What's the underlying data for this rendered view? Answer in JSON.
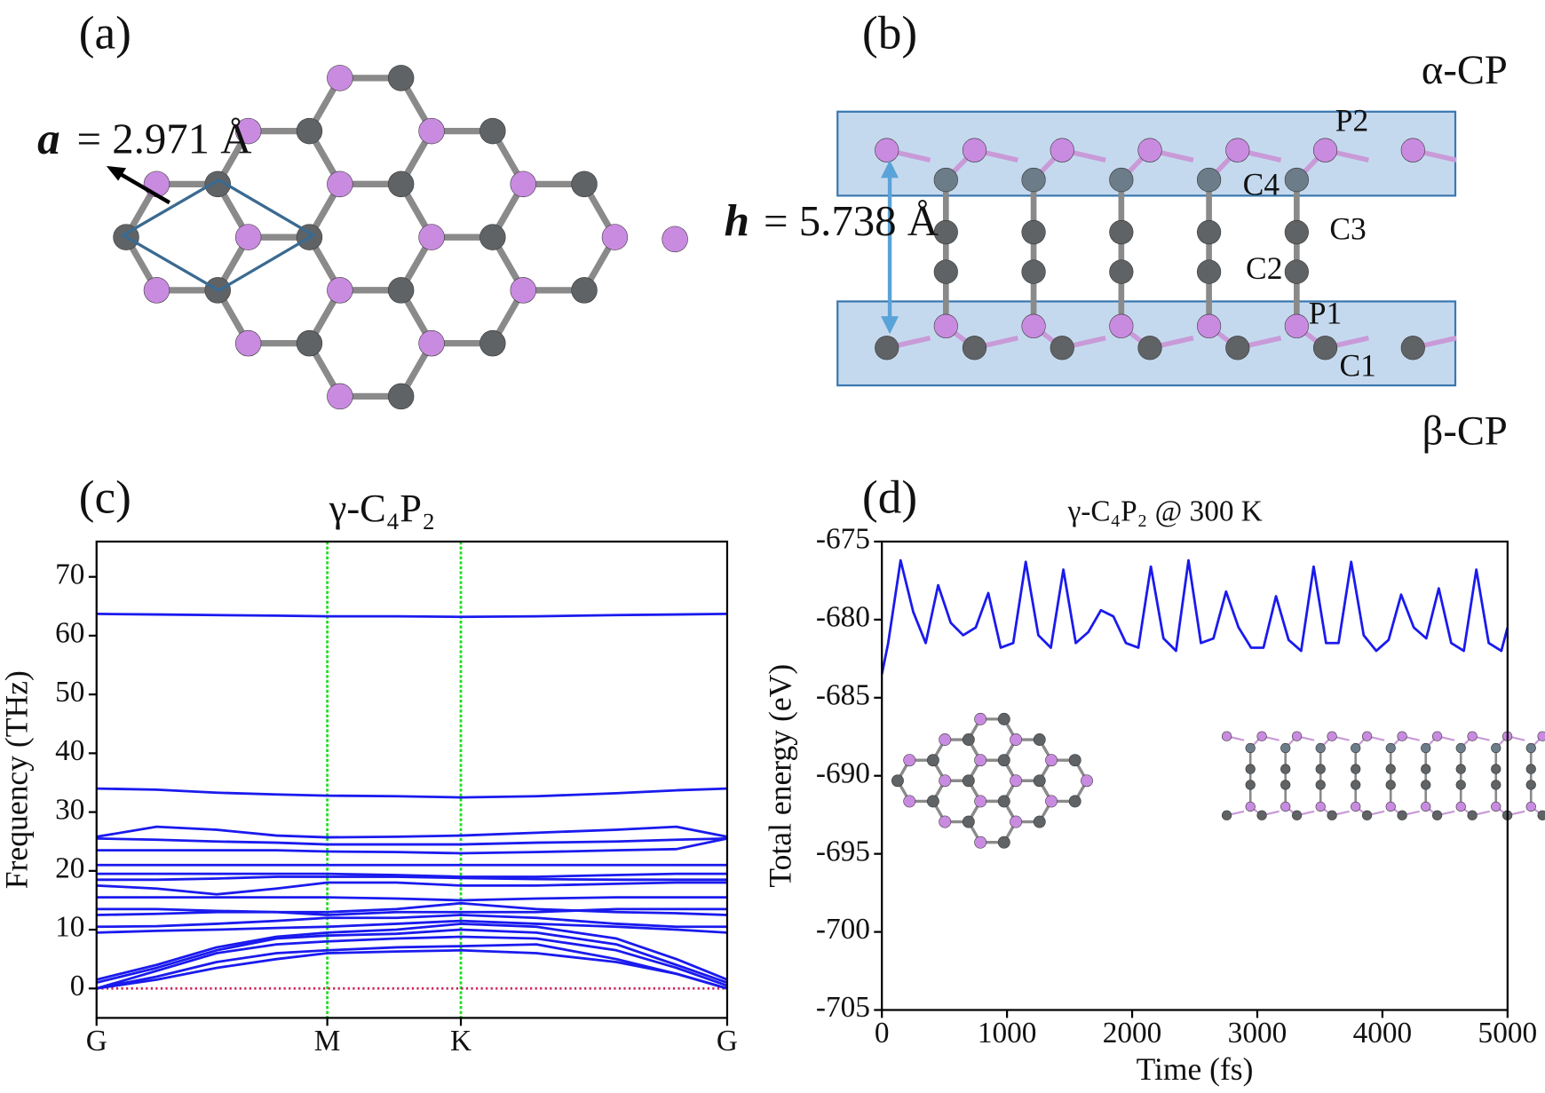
{
  "panels": {
    "a": {
      "label": "(a)",
      "lattice_symbol": "a",
      "lattice_value": "= 2.971 Å"
    },
    "b": {
      "label": "(b)",
      "height_symbol": "h",
      "height_value": "= 5.738 Å",
      "top_layer": "α-CP",
      "bottom_layer": "β-CP",
      "atoms": [
        "P2",
        "C4",
        "C3",
        "C2",
        "P1",
        "C1"
      ]
    }
  },
  "chart_data": [
    {
      "panel_label": "(c)",
      "type": "line",
      "title": "γ-C₄P₂",
      "ylabel": "Frequency (THz)",
      "color": "#1a1aee",
      "x": [
        0,
        0.15,
        0.3,
        0.45,
        0.577,
        0.75,
        0.911,
        1.1,
        1.3,
        1.45,
        1.577
      ],
      "xlim": [
        0,
        1.577
      ],
      "xticks": [
        {
          "value": 0,
          "label": "G"
        },
        {
          "value": 0.577,
          "label": "M"
        },
        {
          "value": 0.911,
          "label": "K"
        },
        {
          "value": 1.577,
          "label": "G"
        }
      ],
      "ylim": [
        -5,
        76
      ],
      "yticks": [
        0,
        10,
        20,
        30,
        40,
        50,
        60,
        70
      ],
      "xgrid_color": "#22dd22",
      "zero_line_color": "#cc2255",
      "series": [
        {
          "values": [
            0,
            1.5,
            3.5,
            5,
            6,
            6.3,
            6.5,
            6,
            4.5,
            2.5,
            0
          ]
        },
        {
          "values": [
            0,
            2,
            4.5,
            6,
            6.5,
            7,
            7.2,
            7.5,
            5,
            2.5,
            0
          ]
        },
        {
          "values": [
            0,
            3,
            6,
            7.5,
            8,
            8.5,
            8.8,
            8.5,
            6.5,
            3.5,
            0.5
          ]
        },
        {
          "values": [
            1,
            3.5,
            6.5,
            8.5,
            9,
            9.3,
            10,
            9.5,
            7.5,
            4,
            1
          ]
        },
        {
          "values": [
            1.5,
            4,
            7,
            8.8,
            9.5,
            10,
            11,
            10.5,
            8.5,
            5,
            1.5
          ]
        },
        {
          "values": [
            9.5,
            9.8,
            10,
            10.3,
            10.5,
            11,
            11.5,
            11,
            10.5,
            10,
            9.5
          ]
        },
        {
          "values": [
            10.5,
            10.6,
            11,
            11.5,
            12,
            12,
            12.5,
            12,
            11,
            10.5,
            10.5
          ]
        },
        {
          "values": [
            12.5,
            12.7,
            13,
            13,
            13,
            13.5,
            14.5,
            13.5,
            13,
            12.8,
            12.5
          ]
        },
        {
          "values": [
            13.5,
            13.5,
            13.2,
            13,
            12.5,
            13,
            13,
            13,
            13.5,
            13.5,
            13.5
          ]
        },
        {
          "values": [
            15.5,
            15.5,
            15.5,
            15.5,
            15.5,
            15.3,
            15,
            15.3,
            15.5,
            15.5,
            15.5
          ]
        },
        {
          "values": [
            17.5,
            17,
            16,
            17,
            18,
            18,
            17.5,
            17.5,
            17.8,
            18,
            18
          ]
        },
        {
          "values": [
            18.5,
            18.5,
            18.7,
            19,
            19,
            19,
            18.8,
            18.6,
            18.5,
            18.5,
            18.5
          ]
        },
        {
          "values": [
            19.5,
            19.5,
            19.5,
            19.5,
            19.5,
            19.3,
            19,
            19,
            19.3,
            19.5,
            19.5
          ]
        },
        {
          "values": [
            21,
            21,
            21,
            21,
            21,
            21,
            21,
            21,
            21,
            21,
            21
          ]
        },
        {
          "values": [
            23.5,
            23.5,
            23.5,
            23.5,
            23.3,
            23.2,
            23,
            23.2,
            23.5,
            23.7,
            25.5
          ]
        },
        {
          "values": [
            25.5,
            25.3,
            25,
            24.8,
            24.5,
            24.5,
            24.5,
            24.8,
            25,
            25.3,
            25.5
          ]
        },
        {
          "values": [
            25.8,
            27.5,
            27,
            26,
            25.7,
            25.8,
            26,
            26.5,
            27,
            27.5,
            25.8
          ]
        },
        {
          "values": [
            34,
            33.8,
            33.3,
            33,
            32.8,
            32.7,
            32.5,
            32.7,
            33.2,
            33.7,
            34
          ]
        },
        {
          "values": [
            63.7,
            63.6,
            63.5,
            63.4,
            63.3,
            63.3,
            63.2,
            63.3,
            63.5,
            63.6,
            63.7
          ]
        }
      ]
    },
    {
      "panel_label": "(d)",
      "type": "line",
      "title": "γ-C₄P₂ @ 300 K",
      "xlabel": "Time (fs)",
      "ylabel": "Total energy (eV)",
      "color": "#1a1aee",
      "x": [
        0,
        50,
        150,
        250,
        350,
        450,
        550,
        650,
        750,
        850,
        950,
        1050,
        1150,
        1250,
        1350,
        1450,
        1550,
        1650,
        1750,
        1850,
        1950,
        2050,
        2150,
        2250,
        2350,
        2450,
        2550,
        2650,
        2750,
        2850,
        2950,
        3050,
        3150,
        3250,
        3350,
        3450,
        3550,
        3650,
        3750,
        3850,
        3950,
        4050,
        4150,
        4250,
        4350,
        4450,
        4550,
        4650,
        4750,
        4850,
        4950,
        5000
      ],
      "values": [
        -683.5,
        -681.5,
        -676.2,
        -679.5,
        -681.5,
        -677.8,
        -680.2,
        -681,
        -680.5,
        -678.3,
        -681.8,
        -681.5,
        -676.3,
        -681,
        -681.8,
        -676.8,
        -681.5,
        -680.8,
        -679.4,
        -679.8,
        -681.5,
        -681.8,
        -676.6,
        -681.2,
        -682,
        -676.2,
        -681.5,
        -681.2,
        -678.2,
        -680.5,
        -681.8,
        -681.8,
        -678.5,
        -681.3,
        -682,
        -676.6,
        -681.5,
        -681.5,
        -676.3,
        -681,
        -682,
        -681.3,
        -678.4,
        -680.5,
        -681.2,
        -678,
        -681.5,
        -682,
        -676.8,
        -681.5,
        -682,
        -680.5
      ],
      "xlim": [
        0,
        5000
      ],
      "xticks": [
        0,
        1000,
        2000,
        3000,
        4000,
        5000
      ],
      "ylim": [
        -705,
        -675
      ],
      "yticks": [
        -705,
        -700,
        -695,
        -690,
        -685,
        -680,
        -675
      ]
    }
  ]
}
